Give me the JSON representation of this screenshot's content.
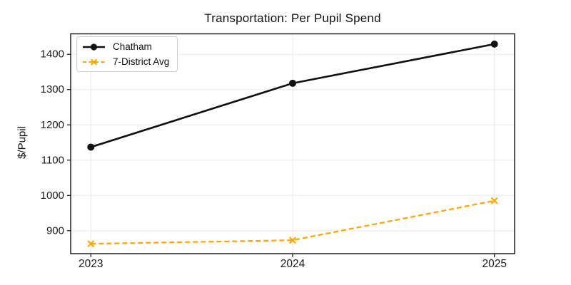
{
  "chart_data": {
    "type": "line",
    "title": "Transportation: Per Pupil Spend",
    "xlabel": "",
    "ylabel": "$/Pupil",
    "categories": [
      "2023",
      "2024",
      "2025"
    ],
    "series": [
      {
        "name": "Chatham",
        "values": [
          1137,
          1318,
          1429
        ],
        "color": "#111111",
        "line_style": "solid",
        "marker": "circle"
      },
      {
        "name": "7-District Avg",
        "values": [
          863,
          873,
          985
        ],
        "color": "#FFA500",
        "line_style": "dashed",
        "marker": "x"
      }
    ],
    "ylim": [
      835,
      1458
    ],
    "yticks": [
      900,
      1000,
      1100,
      1200,
      1300,
      1400
    ],
    "grid": true,
    "grid_color": "#e8e8e8",
    "axis_color": "#111111",
    "tick_label_color": "#1a1a1a",
    "legend_position": "upper-left"
  }
}
